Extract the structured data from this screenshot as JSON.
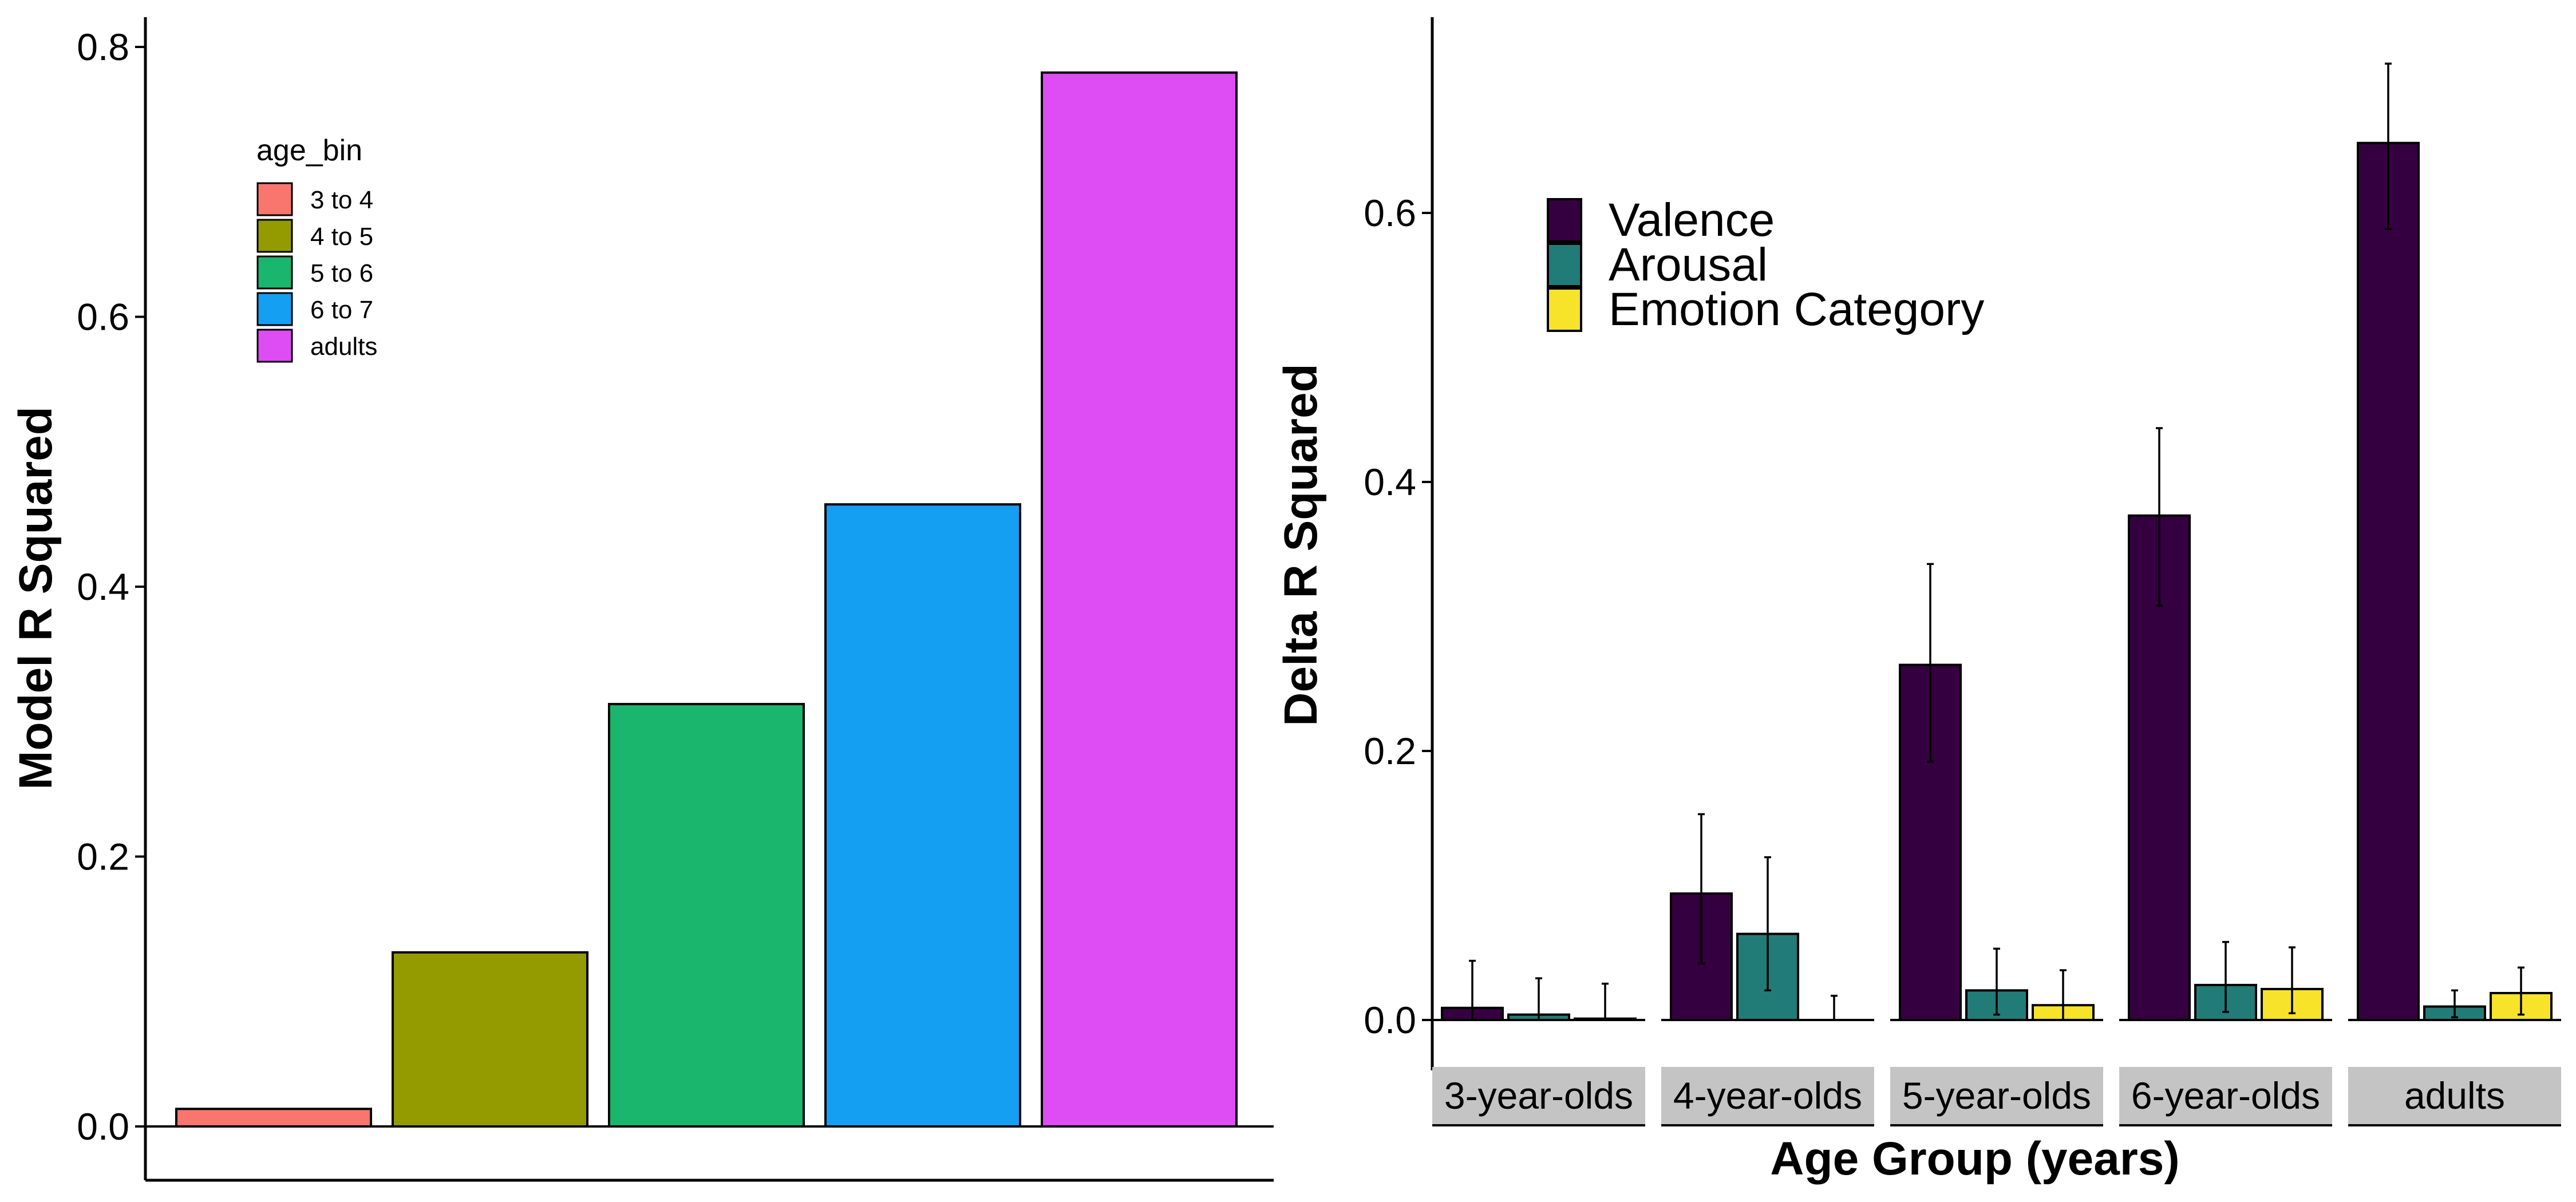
{
  "chart_data": [
    {
      "type": "bar",
      "title": "",
      "xlabel": "",
      "ylabel": "Model R Squared",
      "ylim": [
        0,
        0.8
      ],
      "y_ticks": [
        "0.0",
        "0.2",
        "0.4",
        "0.6",
        "0.8"
      ],
      "grid": false,
      "legend_placement": "top-left",
      "legend": {
        "title": "age_bin",
        "items": [
          {
            "label": "3 to 4",
            "color": "#F8766D"
          },
          {
            "label": "4 to 5",
            "color": "#949B00"
          },
          {
            "label": "5 to 6",
            "color": "#1AB66E"
          },
          {
            "label": "6 to 7",
            "color": "#159FF2"
          },
          {
            "label": "adults",
            "color": "#DE4CF4"
          }
        ]
      },
      "categories": [
        "3 to 4",
        "4 to 5",
        "5 to 6",
        "6 to 7",
        "adults"
      ],
      "values": [
        0.013,
        0.129,
        0.313,
        0.461,
        0.781
      ]
    },
    {
      "type": "bar",
      "title": "",
      "xlabel": "Age Group (years)",
      "ylabel": "Delta R Squared",
      "ylim": [
        0,
        0.75
      ],
      "y_ticks": [
        "0.0",
        "0.2",
        "0.4",
        "0.6"
      ],
      "grid": false,
      "legend_placement": "top-left",
      "facets": [
        "3-year-olds",
        "4-year-olds",
        "5-year-olds",
        "6-year-olds",
        "adults"
      ],
      "series": [
        {
          "name": "Valence",
          "color": "#35003F",
          "values": [
            0.009,
            0.094,
            0.264,
            0.375,
            0.652
          ],
          "error_low": [
            0.0,
            0.042,
            0.192,
            0.308,
            0.588
          ],
          "error_high": [
            0.044,
            0.153,
            0.339,
            0.44,
            0.711
          ]
        },
        {
          "name": "Arousal",
          "color": "#217C78",
          "values": [
            0.004,
            0.064,
            0.022,
            0.026,
            0.01
          ],
          "error_low": [
            0.0,
            0.022,
            0.004,
            0.006,
            0.002
          ],
          "error_high": [
            0.031,
            0.121,
            0.053,
            0.058,
            0.022
          ]
        },
        {
          "name": "Emotion Category",
          "color": "#F6E32A",
          "values": [
            0.001,
            0.0,
            0.011,
            0.023,
            0.02
          ],
          "error_low": [
            0.0,
            0.0,
            0.0,
            0.005,
            0.004
          ],
          "error_high": [
            0.027,
            0.018,
            0.037,
            0.054,
            0.039
          ]
        }
      ]
    }
  ]
}
